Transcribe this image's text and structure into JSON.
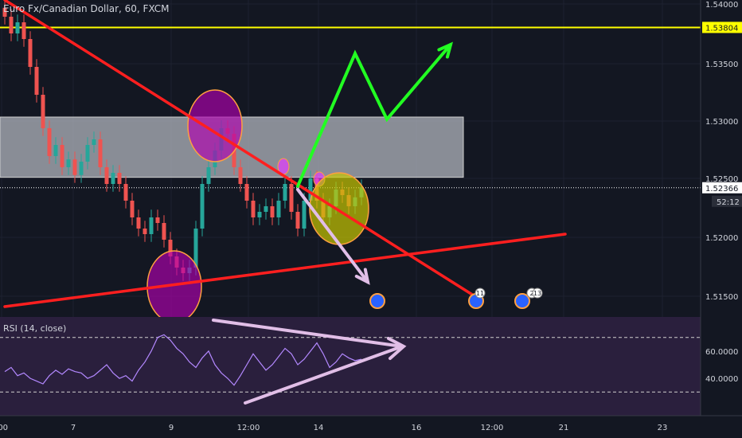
{
  "header": {
    "symbol_title": "Euro Fx/Canadian Dollar, 60, FXCM"
  },
  "colors": {
    "background": "#131722",
    "grid": "#1e2230",
    "bull_candle": "#26a69a",
    "bear_candle": "#ef5350",
    "resistance_line": "#ffff00",
    "trend_line": "#ff1f1f",
    "zone_fill": "#b2b5be",
    "projection_up": "#22ff22",
    "projection_down": "#e1bee7",
    "rsi_panel": "#2a1f3d",
    "rsi_line": "#b388ff"
  },
  "price_axis": {
    "ticks": [
      "1.54000",
      "1.53500",
      "1.53000",
      "1.52500",
      "1.52000",
      "1.51500"
    ],
    "label_resistance": "1.53804",
    "label_current": "1.52366",
    "label_countdown": "52:12"
  },
  "time_axis": {
    "ticks": [
      ":00",
      "7",
      "9",
      "12:00",
      "14",
      "16",
      "12:00",
      "21",
      "23"
    ]
  },
  "rsi": {
    "title": "RSI (14, close)",
    "ticks": [
      "60.0000",
      "40.0000"
    ],
    "overbought": 70,
    "oversold": 30
  },
  "events": [
    {
      "label": ""
    },
    {
      "label": "11"
    },
    {
      "label": ""
    },
    {
      "label": "2"
    },
    {
      "label": "13"
    }
  ],
  "chart_data": {
    "type": "candlestick",
    "symbol": "EURCAD",
    "interval": "60",
    "ylim": [
      1.5125,
      1.5405
    ],
    "horizontal_levels": [
      1.53804
    ],
    "zone": [
      1.5246,
      1.53
    ],
    "current_price": 1.52366,
    "close_series": [
      1.539,
      1.5375,
      1.5385,
      1.537,
      1.5345,
      1.532,
      1.529,
      1.5265,
      1.5275,
      1.5255,
      1.5262,
      1.5248,
      1.526,
      1.5275,
      1.528,
      1.5255,
      1.524,
      1.525,
      1.524,
      1.5225,
      1.521,
      1.52,
      1.5195,
      1.521,
      1.5205,
      1.519,
      1.5175,
      1.5165,
      1.516,
      1.5165,
      1.52,
      1.524,
      1.5255,
      1.527,
      1.529,
      1.5285,
      1.5255,
      1.524,
      1.5225,
      1.521,
      1.5215,
      1.522,
      1.521,
      1.5225,
      1.524,
      1.5215,
      1.52,
      1.5225,
      1.5245,
      1.5225,
      1.521,
      1.522,
      1.5235,
      1.523,
      1.522,
      1.5228,
      1.5237
    ],
    "rsi_values": [
      45,
      48,
      42,
      44,
      40,
      38,
      36,
      42,
      46,
      43,
      47,
      45,
      44,
      40,
      42,
      46,
      50,
      44,
      40,
      42,
      38,
      46,
      52,
      60,
      70,
      72,
      68,
      62,
      58,
      52,
      48,
      55,
      60,
      50,
      44,
      40,
      35,
      42,
      50,
      58,
      52,
      46,
      50,
      56,
      62,
      58,
      50,
      54,
      60,
      66,
      58,
      48,
      52,
      58,
      55,
      53,
      54
    ],
    "trendlines": [
      {
        "name": "descending",
        "points": [
          [
            0,
            1.5405
          ],
          [
            75,
            1.5135
          ]
        ]
      },
      {
        "name": "ascending",
        "points": [
          [
            0,
            1.513
          ],
          [
            88,
            1.5195
          ]
        ]
      }
    ],
    "projections": [
      {
        "name": "up",
        "points": [
          [
            46,
            1.5238
          ],
          [
            55,
            1.5357
          ],
          [
            60,
            1.5298
          ],
          [
            70,
            1.5365
          ]
        ]
      },
      {
        "name": "down",
        "points": [
          [
            46,
            1.5235
          ],
          [
            57,
            1.5152
          ]
        ]
      }
    ]
  }
}
